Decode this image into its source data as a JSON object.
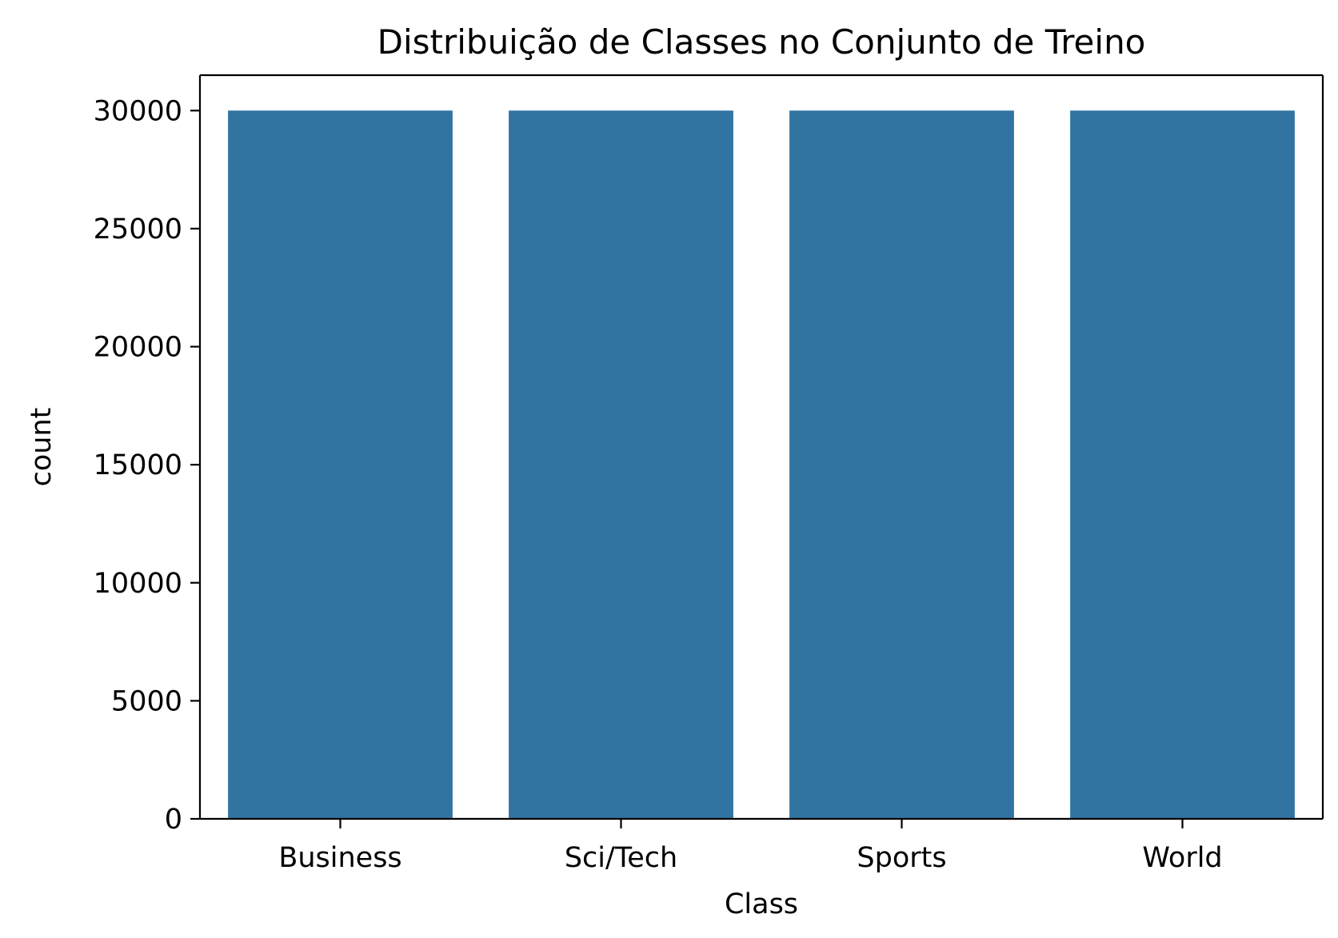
{
  "chart_data": {
    "type": "bar",
    "title": "Distribuição de Classes no Conjunto de Treino",
    "xlabel": "Class",
    "ylabel": "count",
    "categories": [
      "Business",
      "Sci/Tech",
      "Sports",
      "World"
    ],
    "values": [
      30000,
      30000,
      30000,
      30000
    ],
    "ylim": [
      0,
      31500
    ],
    "yticks": [
      0,
      5000,
      10000,
      15000,
      20000,
      25000,
      30000
    ],
    "ytick_labels": [
      "0",
      "5000",
      "10000",
      "15000",
      "20000",
      "25000",
      "30000"
    ],
    "grid": false,
    "legend": "none",
    "bar_color": "#3274a1"
  }
}
